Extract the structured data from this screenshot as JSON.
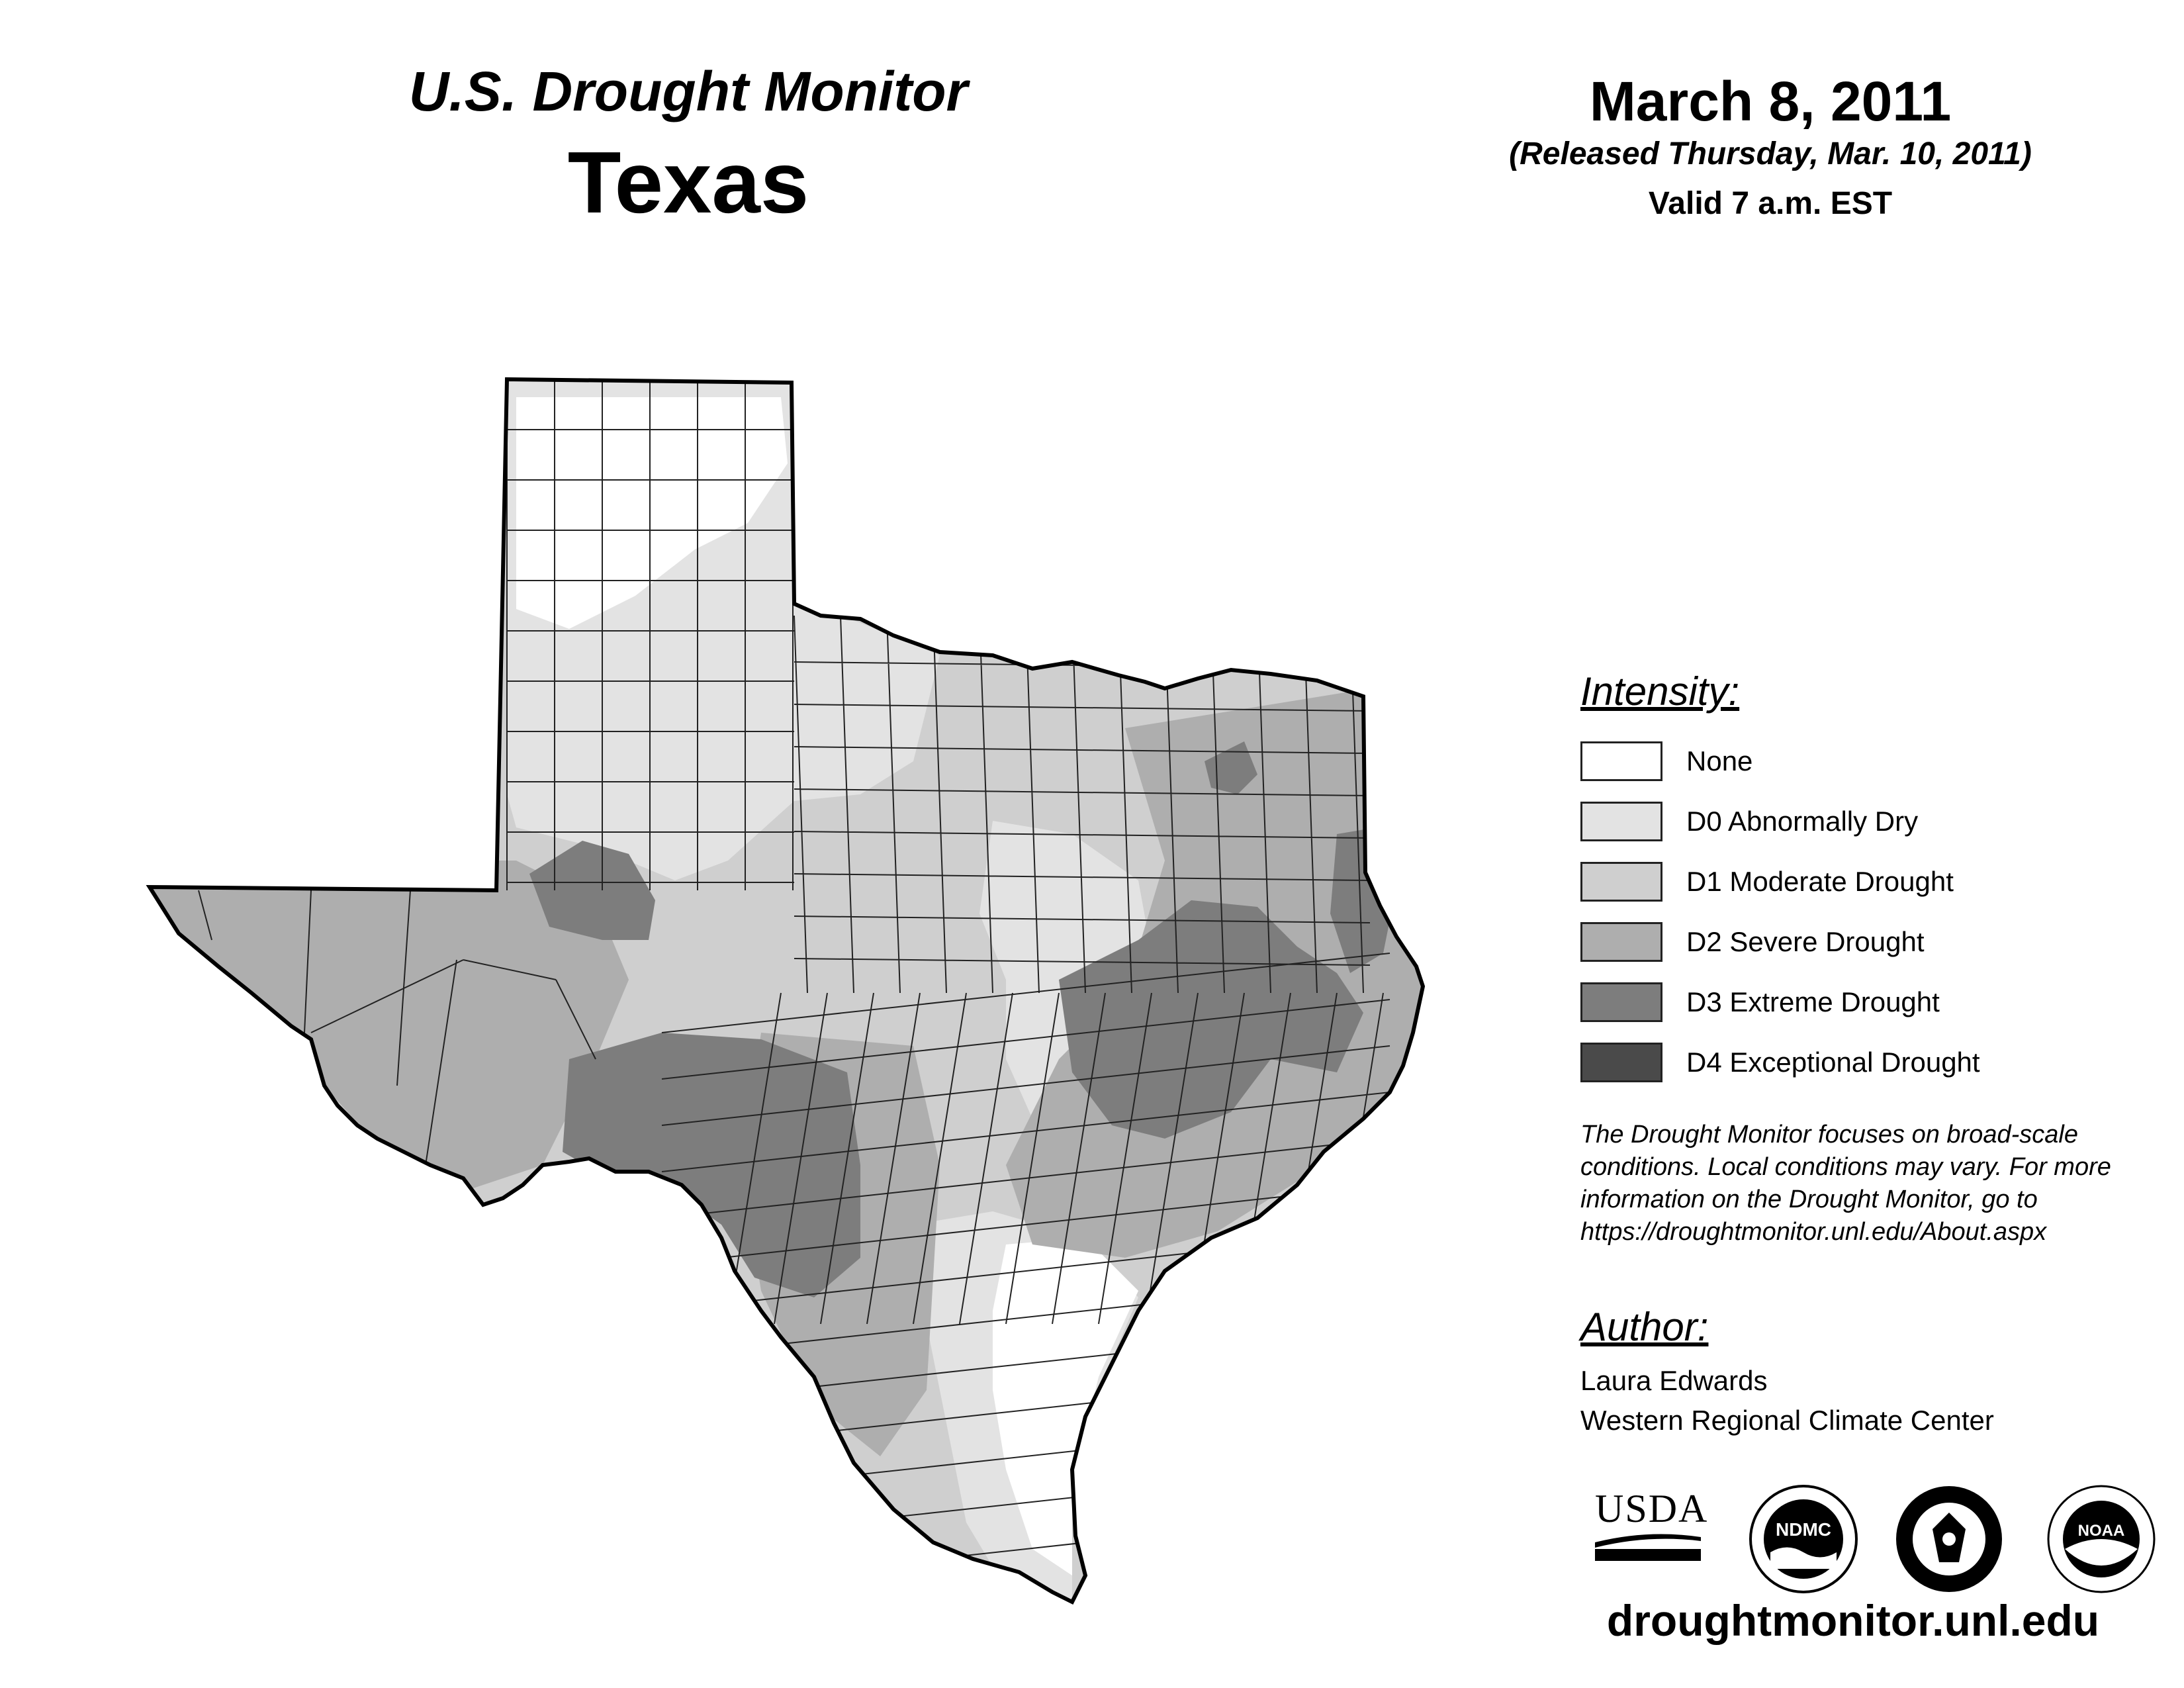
{
  "header": {
    "product": "U.S. Drought Monitor",
    "state": "Texas",
    "date": "March 8, 2011",
    "released": "(Released Thursday, Mar. 10, 2011)",
    "valid": "Valid 7 a.m. EST"
  },
  "legend": {
    "heading": "Intensity:",
    "items": [
      {
        "label": "None",
        "color": "#ffffff"
      },
      {
        "label": "D0 Abnormally Dry",
        "color": "#e3e3e3"
      },
      {
        "label": "D1 Moderate Drought",
        "color": "#cfcfcf"
      },
      {
        "label": "D2 Severe Drought",
        "color": "#aeaeae"
      },
      {
        "label": "D3 Extreme Drought",
        "color": "#7d7d7d"
      },
      {
        "label": "D4 Exceptional Drought",
        "color": "#4a4a4a"
      }
    ]
  },
  "note": {
    "lines": [
      "The Drought Monitor focuses on broad-scale",
      "conditions. Local conditions may vary. For more",
      "information on the Drought Monitor, go to",
      "https://droughtmonitor.unl.edu/About.aspx"
    ]
  },
  "author": {
    "heading": "Author:",
    "name": "Laura Edwards",
    "org": "Western Regional Climate Center"
  },
  "logos": {
    "usda": "USDA",
    "ndmc": "NDMC",
    "noaa": "NOAA"
  },
  "website": "droughtmonitor.unl.edu"
}
